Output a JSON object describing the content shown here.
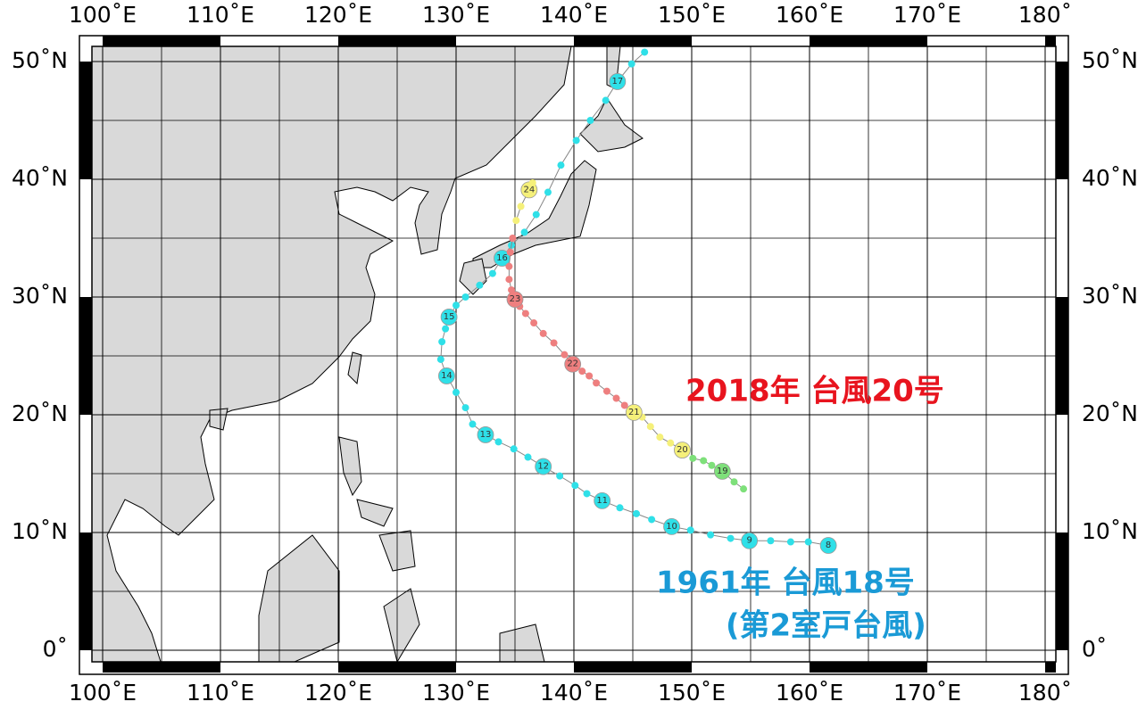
{
  "map": {
    "lon_ticks": [
      {
        "value": 100,
        "label": "100˚E"
      },
      {
        "value": 110,
        "label": "110˚E"
      },
      {
        "value": 120,
        "label": "120˚E"
      },
      {
        "value": 130,
        "label": "130˚E"
      },
      {
        "value": 140,
        "label": "140˚E"
      },
      {
        "value": 150,
        "label": "150˚E"
      },
      {
        "value": 160,
        "label": "160˚E"
      },
      {
        "value": 170,
        "label": "170˚E"
      },
      {
        "value": 180,
        "label": "180˚"
      }
    ],
    "lat_ticks": [
      {
        "value": 0,
        "label": "0˚"
      },
      {
        "value": 10,
        "label": "10˚N"
      },
      {
        "value": 20,
        "label": "20˚N"
      },
      {
        "value": 30,
        "label": "30˚N"
      },
      {
        "value": 40,
        "label": "40˚N"
      },
      {
        "value": 50,
        "label": "50˚N"
      }
    ],
    "annotations": [
      {
        "text": "2018年 台風20号",
        "color": "#e8141e"
      },
      {
        "text": "1961年 台風18号",
        "color": "#1a9ad6"
      },
      {
        "text": "(第2室戸台風)",
        "color": "#1a9ad6"
      }
    ],
    "tracks": [
      {
        "color": "#2fe0e8",
        "points": [
          {
            "lon": 161.6,
            "lat": 8.9,
            "label": "8"
          },
          {
            "lon": 159.9,
            "lat": 9.2
          },
          {
            "lon": 158.4,
            "lat": 9.2
          },
          {
            "lon": 156.7,
            "lat": 9.3
          },
          {
            "lon": 154.9,
            "lat": 9.3,
            "label": "9"
          },
          {
            "lon": 153.3,
            "lat": 9.5
          },
          {
            "lon": 151.6,
            "lat": 9.8
          },
          {
            "lon": 149.9,
            "lat": 10.2
          },
          {
            "lon": 148.3,
            "lat": 10.5,
            "label": "10"
          },
          {
            "lon": 146.6,
            "lat": 11.1
          },
          {
            "lon": 145.3,
            "lat": 11.6
          },
          {
            "lon": 143.9,
            "lat": 12.1
          },
          {
            "lon": 142.4,
            "lat": 12.7,
            "label": "11"
          },
          {
            "lon": 141.1,
            "lat": 13.3
          },
          {
            "lon": 140.1,
            "lat": 14.0
          },
          {
            "lon": 138.8,
            "lat": 14.8
          },
          {
            "lon": 137.4,
            "lat": 15.6,
            "label": "12"
          },
          {
            "lon": 136.1,
            "lat": 16.4
          },
          {
            "lon": 134.9,
            "lat": 17.1
          },
          {
            "lon": 133.6,
            "lat": 17.7
          },
          {
            "lon": 132.5,
            "lat": 18.3,
            "label": "13"
          },
          {
            "lon": 131.4,
            "lat": 19.2
          },
          {
            "lon": 130.8,
            "lat": 20.6
          },
          {
            "lon": 130.0,
            "lat": 21.9
          },
          {
            "lon": 129.2,
            "lat": 23.3,
            "label": "14"
          },
          {
            "lon": 128.7,
            "lat": 24.7
          },
          {
            "lon": 128.8,
            "lat": 26.2
          },
          {
            "lon": 129.1,
            "lat": 27.3
          },
          {
            "lon": 129.4,
            "lat": 28.3,
            "label": "15"
          },
          {
            "lon": 130.0,
            "lat": 29.3
          },
          {
            "lon": 130.8,
            "lat": 30.0
          },
          {
            "lon": 132.0,
            "lat": 31.0
          },
          {
            "lon": 133.1,
            "lat": 32.0
          },
          {
            "lon": 133.9,
            "lat": 33.3,
            "label": "16"
          },
          {
            "lon": 134.7,
            "lat": 34.4
          },
          {
            "lon": 135.8,
            "lat": 35.5
          },
          {
            "lon": 136.8,
            "lat": 37.0
          },
          {
            "lon": 137.8,
            "lat": 38.9
          },
          {
            "lon": 138.9,
            "lat": 41.2
          },
          {
            "lon": 140.2,
            "lat": 43.3
          },
          {
            "lon": 141.4,
            "lat": 45.0
          },
          {
            "lon": 142.7,
            "lat": 46.7
          },
          {
            "lon": 143.7,
            "lat": 48.3,
            "label": "17"
          },
          {
            "lon": 144.9,
            "lat": 49.8
          },
          {
            "lon": 146.0,
            "lat": 50.8
          }
        ]
      },
      {
        "color": "#7ee07a",
        "points": [
          {
            "lon": 154.4,
            "lat": 13.7
          },
          {
            "lon": 153.6,
            "lat": 14.3
          },
          {
            "lon": 152.6,
            "lat": 15.2,
            "label": "19"
          },
          {
            "lon": 151.7,
            "lat": 15.7
          },
          {
            "lon": 151.0,
            "lat": 16.1
          },
          {
            "lon": 150.1,
            "lat": 16.3
          }
        ]
      },
      {
        "color": "#f5f07a",
        "points": [
          {
            "lon": 149.2,
            "lat": 17.0,
            "label": "20"
          },
          {
            "lon": 148.2,
            "lat": 17.6
          },
          {
            "lon": 147.3,
            "lat": 18.1
          },
          {
            "lon": 146.5,
            "lat": 19.0
          },
          {
            "lon": 145.8,
            "lat": 19.8
          },
          {
            "lon": 145.1,
            "lat": 20.2,
            "label": "21"
          }
        ]
      },
      {
        "color": "#ee7f7f",
        "points": [
          {
            "lon": 144.3,
            "lat": 20.8
          },
          {
            "lon": 143.6,
            "lat": 21.4
          },
          {
            "lon": 142.8,
            "lat": 22.0
          },
          {
            "lon": 141.9,
            "lat": 22.7
          },
          {
            "lon": 141.3,
            "lat": 23.3
          },
          {
            "lon": 140.7,
            "lat": 23.7
          },
          {
            "lon": 139.9,
            "lat": 24.3,
            "label": "22"
          },
          {
            "lon": 139.2,
            "lat": 25.1
          },
          {
            "lon": 138.3,
            "lat": 26.1
          },
          {
            "lon": 137.4,
            "lat": 26.9
          },
          {
            "lon": 136.6,
            "lat": 27.8
          },
          {
            "lon": 135.9,
            "lat": 28.6
          },
          {
            "lon": 135.4,
            "lat": 29.2
          },
          {
            "lon": 135.0,
            "lat": 29.8,
            "label": "23"
          },
          {
            "lon": 134.7,
            "lat": 30.6
          },
          {
            "lon": 134.5,
            "lat": 31.5
          },
          {
            "lon": 134.5,
            "lat": 32.6
          },
          {
            "lon": 134.6,
            "lat": 33.8
          },
          {
            "lon": 134.8,
            "lat": 35.0
          }
        ]
      },
      {
        "color": "#f5f07a",
        "points": [
          {
            "lon": 135.1,
            "lat": 36.5
          },
          {
            "lon": 135.5,
            "lat": 37.7
          },
          {
            "lon": 136.2,
            "lat": 39.1,
            "label": "24"
          },
          {
            "lon": 136.5,
            "lat": 39.7
          }
        ]
      }
    ]
  }
}
